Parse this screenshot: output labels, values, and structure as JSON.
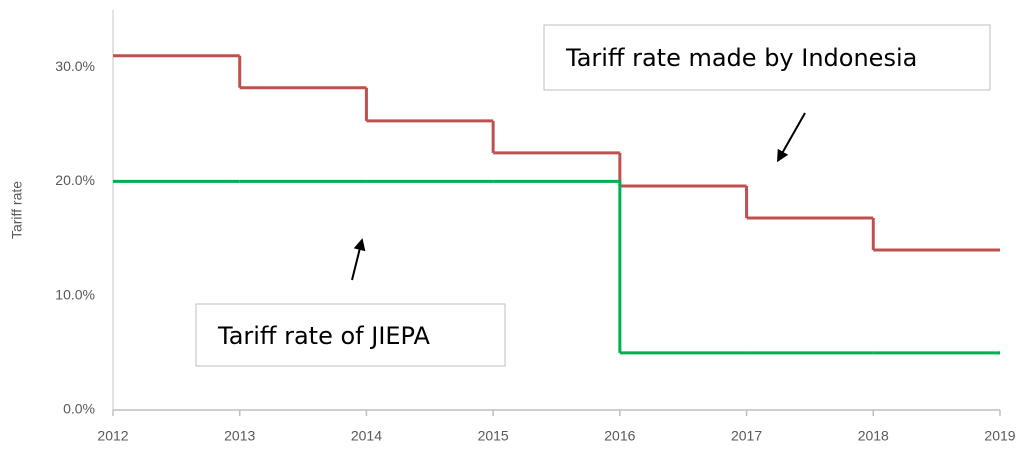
{
  "chart_data": {
    "type": "step",
    "y_label": "Tariff rate",
    "x": [
      2012,
      2013,
      2014,
      2015,
      2016,
      2017,
      2018,
      2019
    ],
    "series": [
      {
        "name": "Tariff rate made by Indonesia",
        "color": "#c0504d",
        "values": [
          31,
          28.2,
          25.3,
          22.5,
          19.6,
          16.8,
          14,
          14
        ]
      },
      {
        "name": "Tariff rate of JIEPA",
        "color": "#00b050",
        "values": [
          20,
          20,
          20,
          20,
          5,
          5,
          5,
          5
        ]
      }
    ],
    "xlim": [
      2012,
      2019
    ],
    "xticks": [
      2012,
      2013,
      2014,
      2015,
      2016,
      2017,
      2018,
      2019
    ],
    "ylim": [
      0,
      35
    ],
    "yticks": [
      {
        "value": 0,
        "label": "0.0%"
      },
      {
        "value": 10,
        "label": "10.0%"
      },
      {
        "value": 20,
        "label": "20.0%"
      },
      {
        "value": 30,
        "label": "30.0%"
      }
    ],
    "grid": false
  }
}
